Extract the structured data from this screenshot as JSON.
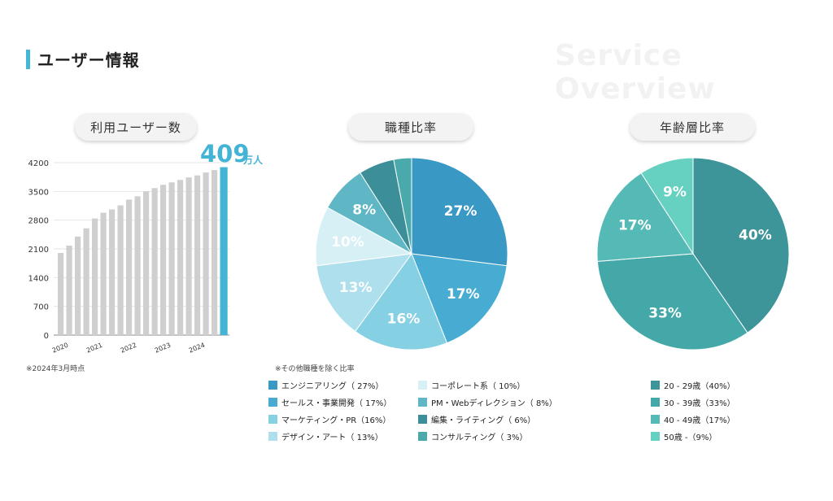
{
  "page": {
    "title": "ユーザー情報",
    "watermark": "Service Overview",
    "users_header": "利用ユーザー数",
    "jobs_header": "職種比率",
    "age_header": "年齢層比率",
    "highlight_value": "409",
    "highlight_unit": "万人",
    "footnote": "※2024年3月時点",
    "legend_note": "※その他職種を除く比率"
  },
  "chart_data": [
    {
      "type": "bar",
      "ylim": [
        0,
        4200
      ],
      "yticks": [
        "0",
        "700",
        "1400",
        "2100",
        "2800",
        "3500",
        "4200"
      ],
      "xticks": [
        "2020",
        "2021",
        "2022",
        "2023",
        "2024"
      ],
      "values": [
        2000,
        2180,
        2400,
        2600,
        2840,
        2980,
        3060,
        3160,
        3300,
        3380,
        3500,
        3580,
        3660,
        3720,
        3780,
        3840,
        3890,
        3960,
        4020,
        4090
      ],
      "bar_color": "#cfcfcf",
      "highlight_color": "#43b3d6"
    },
    {
      "type": "pie",
      "slices": [
        {
          "label": "エンジニアリング（ 27%）",
          "value": 27,
          "text": "27%",
          "color": "#3a98c5"
        },
        {
          "label": "セールス・事業開発（ 17%）",
          "value": 17,
          "text": "17%",
          "color": "#48acd2"
        },
        {
          "label": "マーケティング・PR（16%）",
          "value": 16,
          "text": "16%",
          "color": "#85d0e2"
        },
        {
          "label": "デザイン・アート（ 13%）",
          "value": 13,
          "text": "13%",
          "color": "#ade0ec"
        },
        {
          "label": "コーポレート系（ 10%）",
          "value": 10,
          "text": "10%",
          "color": "#d7f0f6"
        },
        {
          "label": "PM・Webディレクション（ 8%）",
          "value": 8,
          "text": "8%",
          "color": "#5fb7c6"
        },
        {
          "label": "編集・ライティング（ 6%）",
          "value": 6,
          "text": "",
          "color": "#3c8f99"
        },
        {
          "label": "コンサルティング（ 3%）",
          "value": 3,
          "text": "",
          "color": "#4aa9aa"
        }
      ]
    },
    {
      "type": "pie",
      "slices": [
        {
          "label": "20 - 29歳（40%）",
          "value": 40,
          "text": "40%",
          "color": "#3d9499"
        },
        {
          "label": "30 - 39歳（33%）",
          "value": 33,
          "text": "33%",
          "color": "#44a8a9"
        },
        {
          "label": "40 - 49歳（17%）",
          "value": 17,
          "text": "17%",
          "color": "#55bab6"
        },
        {
          "label": "50歳 -（9%）",
          "value": 9,
          "text": "9%",
          "color": "#66d0c1"
        }
      ]
    }
  ],
  "legend_jobs_left": [
    {
      "label": "エンジニアリング（ 27%）",
      "color": "#3a98c5"
    },
    {
      "label": "セールス・事業開発（ 17%）",
      "color": "#48acd2"
    },
    {
      "label": "マーケティング・PR（16%）",
      "color": "#85d0e2"
    },
    {
      "label": "デザイン・アート（ 13%）",
      "color": "#ade0ec"
    }
  ],
  "legend_jobs_right": [
    {
      "label": "コーポレート系（ 10%）",
      "color": "#d7f0f6"
    },
    {
      "label": "PM・Webディレクション（ 8%）",
      "color": "#5fb7c6"
    },
    {
      "label": "編集・ライティング（ 6%）",
      "color": "#3c8f99"
    },
    {
      "label": "コンサルティング（ 3%）",
      "color": "#4aa9aa"
    }
  ],
  "legend_age": [
    {
      "label": "20 - 29歳（40%）",
      "color": "#3d9499"
    },
    {
      "label": "30 - 39歳（33%）",
      "color": "#44a8a9"
    },
    {
      "label": "40 - 49歳（17%）",
      "color": "#55bab6"
    },
    {
      "label": "50歳 -（9%）",
      "color": "#66d0c1"
    }
  ]
}
